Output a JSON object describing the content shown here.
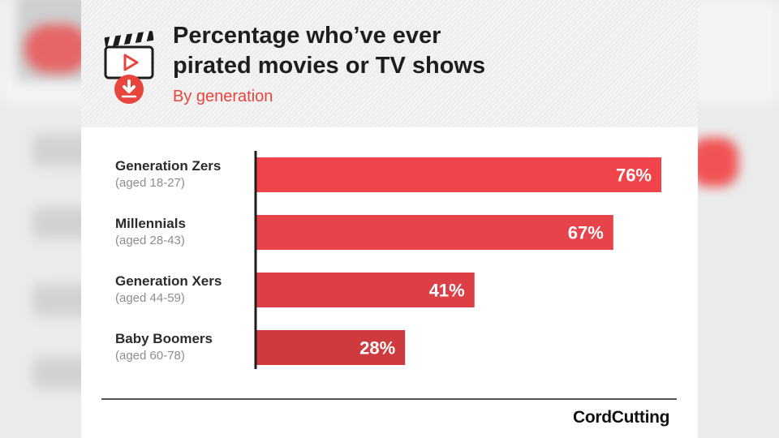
{
  "header": {
    "title": "Percentage who’ve ever\npirated movies or TV shows",
    "subtitle": "By generation"
  },
  "brand": "CordCutting",
  "colors": {
    "accent": "#e8453c",
    "bars": [
      "#f0434a",
      "#e7434a",
      "#dc3f45",
      "#cf3a3f"
    ]
  },
  "icons": [
    "clapperboard-icon",
    "download-icon"
  ],
  "chart_data": {
    "type": "bar",
    "orientation": "horizontal",
    "title": "Percentage who’ve ever\npirated movies or TV shows",
    "subtitle": "By generation",
    "categories": [
      "Generation Zers",
      "Millennials",
      "Generation Xers",
      "Baby Boomers"
    ],
    "category_notes": [
      "(aged 18-27)",
      "(aged 28-43)",
      "(aged 44-59)",
      "(aged 60-78)"
    ],
    "values": [
      76,
      67,
      41,
      28
    ],
    "value_labels": [
      "76%",
      "67%",
      "41%",
      "28%"
    ],
    "unit": "%",
    "xlim": [
      0,
      76
    ],
    "grid": false,
    "legend": "none"
  }
}
